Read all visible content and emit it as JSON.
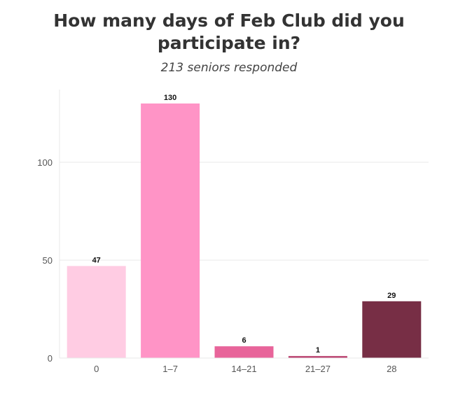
{
  "chart_data": {
    "type": "bar",
    "title": "How many days of Feb Club did you participate in?",
    "subtitle": "213 seniors responded",
    "categories": [
      "0",
      "1–7",
      "14–21",
      "21–27",
      "28"
    ],
    "values": [
      47,
      130,
      6,
      1,
      29
    ],
    "data_labels": [
      "47",
      "130",
      "6",
      "1",
      "29"
    ],
    "bar_colors": [
      "#ffcce3",
      "#ff94c6",
      "#e8649a",
      "#b83b6b",
      "#772e45"
    ],
    "ylim": [
      0,
      130
    ],
    "yticks": [
      0,
      50,
      100
    ],
    "ytick_labels": [
      "0",
      "50",
      "100"
    ],
    "xlabel": "",
    "ylabel": "",
    "grid": true,
    "grid_color": "#e8e8e8"
  }
}
